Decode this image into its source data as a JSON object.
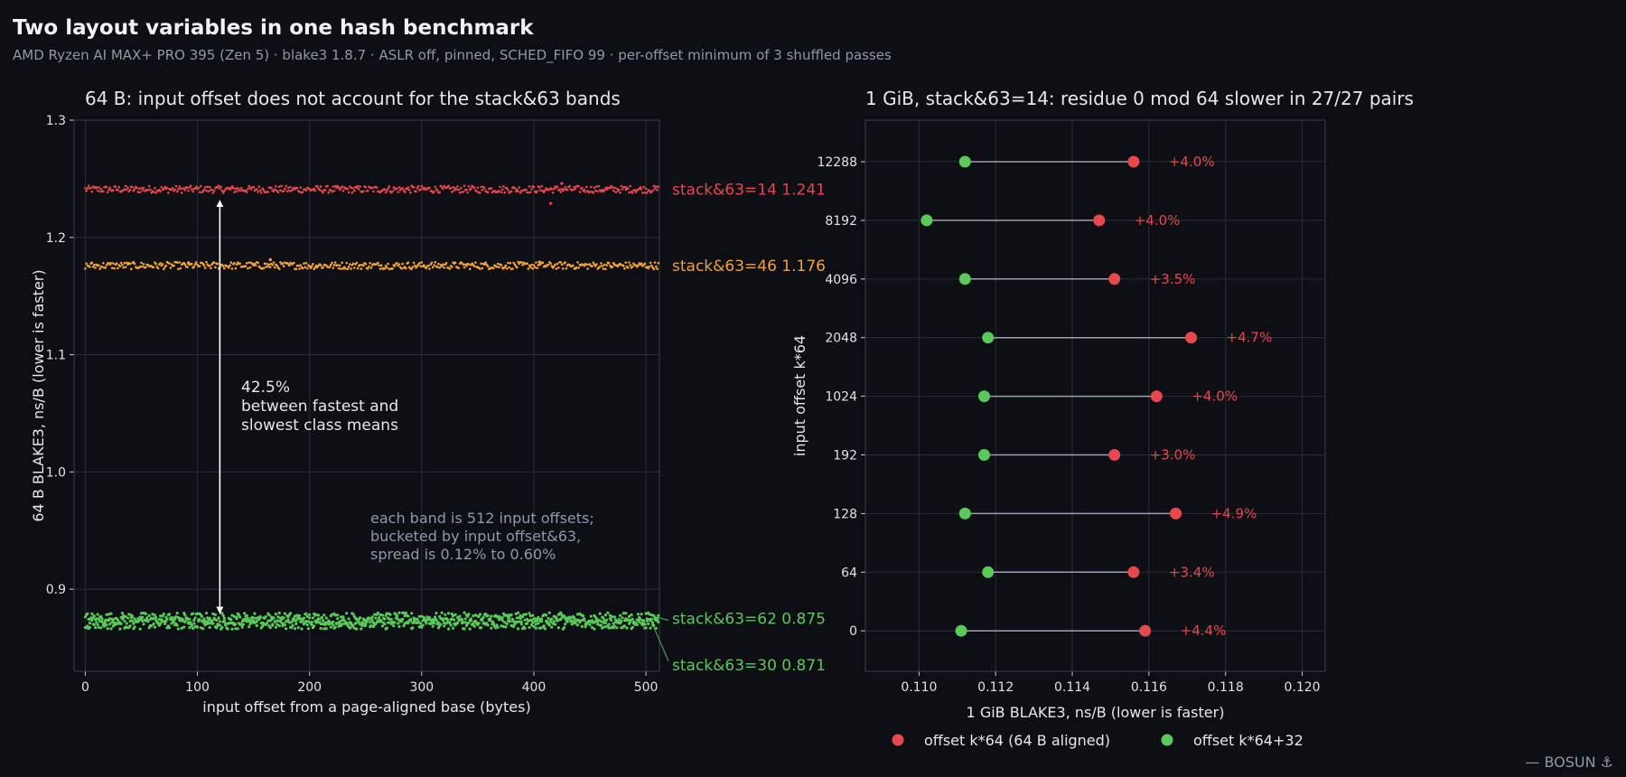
{
  "title": "Two layout variables in one hash benchmark",
  "subtitle": "AMD Ryzen AI MAX+ PRO 395 (Zen 5) · blake3 1.8.7 · ASLR off, pinned, SCHED_FIFO 99 · per-offset minimum of 3 shuffled passes",
  "watermark": "— BOSUN ⚓",
  "colors": {
    "red": "#e5484d",
    "orange": "#f0a23b",
    "green": "#5ac95a",
    "background": "#0d0f14",
    "grid": "#2a2e37"
  },
  "chart_data": [
    {
      "type": "scatter",
      "title": "64 B: input offset does not account for the stack&63 bands",
      "xlabel": "input offset from a page-aligned base (bytes)",
      "ylabel": "64 B BLAKE3, ns/B  (lower is faster)",
      "xlim": [
        -10,
        512
      ],
      "ylim": [
        0.83,
        1.3
      ],
      "xticks": [
        0,
        100,
        200,
        300,
        400,
        500
      ],
      "yticks": [
        0.9,
        1.0,
        1.1,
        1.2,
        1.3
      ],
      "grid": true,
      "x_range": [
        0,
        511
      ],
      "series": [
        {
          "label": "stack&63=14",
          "value_label": "1.241",
          "mean": 1.241,
          "spread": 0.003,
          "color": "#e5484d",
          "outliers": [
            {
              "x": 415,
              "y": 1.229
            },
            {
              "x": 425,
              "y": 1.246
            }
          ]
        },
        {
          "label": "stack&63=46",
          "value_label": "1.176",
          "mean": 1.176,
          "spread": 0.003,
          "color": "#f0a23b",
          "outliers": [
            {
              "x": 165,
              "y": 1.181
            },
            {
              "x": 405,
              "y": 1.179
            },
            {
              "x": 92,
              "y": 1.178
            }
          ]
        },
        {
          "label": "stack&63=62",
          "value_label": "0.875",
          "mean": 0.875,
          "spread": 0.005,
          "color": "#5ac95a",
          "outliers": []
        },
        {
          "label": "stack&63=30",
          "value_label": "0.871",
          "mean": 0.871,
          "spread": 0.005,
          "color": "#5ac95a",
          "outliers": []
        }
      ],
      "arrow": {
        "x": 120,
        "y_from": 1.229,
        "y_to": 0.882
      },
      "annotation": [
        "42.5%",
        "between fastest and",
        "slowest class means"
      ],
      "note": [
        "each band is 512 input offsets;",
        "bucketed by input offset&63,",
        "spread is 0.12% to 0.60%"
      ]
    },
    {
      "type": "dumbbell",
      "title": "1 GiB, stack&63=14: residue 0 mod 64 slower in 27/27 pairs",
      "xlabel": "1 GiB BLAKE3, ns/B  (lower is faster)",
      "ylabel": "input offset  k*64",
      "xlim": [
        0.1086,
        0.1206
      ],
      "xticks": [
        0.11,
        0.112,
        0.114,
        0.116,
        0.118,
        0.12
      ],
      "grid": true,
      "legend": [
        {
          "label": "offset k*64  (64 B aligned)",
          "color": "#e5484d"
        },
        {
          "label": "offset k*64+32",
          "color": "#5ac95a"
        }
      ],
      "rows": [
        {
          "offset": "12288",
          "aligned": 0.1156,
          "shifted": 0.1112,
          "delta": "+4.0%"
        },
        {
          "offset": "8192",
          "aligned": 0.1147,
          "shifted": 0.1102,
          "delta": "+4.0%"
        },
        {
          "offset": "4096",
          "aligned": 0.1151,
          "shifted": 0.1112,
          "delta": "+3.5%"
        },
        {
          "offset": "2048",
          "aligned": 0.1171,
          "shifted": 0.1118,
          "delta": "+4.7%"
        },
        {
          "offset": "1024",
          "aligned": 0.1162,
          "shifted": 0.1117,
          "delta": "+4.0%"
        },
        {
          "offset": "192",
          "aligned": 0.1151,
          "shifted": 0.1117,
          "delta": "+3.0%"
        },
        {
          "offset": "128",
          "aligned": 0.1167,
          "shifted": 0.1112,
          "delta": "+4.9%"
        },
        {
          "offset": "64",
          "aligned": 0.1156,
          "shifted": 0.1118,
          "delta": "+3.4%"
        },
        {
          "offset": "0",
          "aligned": 0.1159,
          "shifted": 0.1111,
          "delta": "+4.4%"
        }
      ]
    }
  ]
}
